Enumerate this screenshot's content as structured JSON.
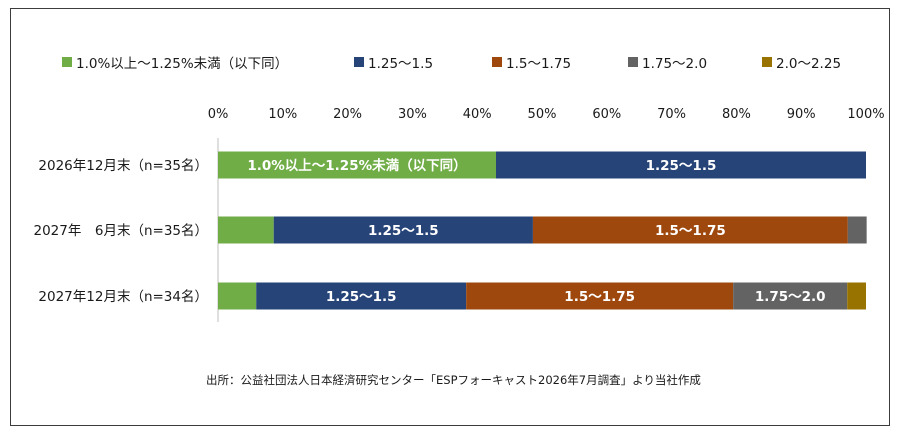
{
  "chart_data": {
    "type": "bar",
    "orientation": "horizontal",
    "stacked": "percent",
    "categories": [
      "2026年12月末（n=35名）",
      "2027年　6月末（n=35名）",
      "2027年12月末（n=34名）"
    ],
    "series": [
      {
        "name": "1.0%以上～1.25%未満（以下同）",
        "color": "#70ad47",
        "values": [
          42.9,
          8.6,
          5.9
        ],
        "bar_labels": [
          "1.0%以上～1.25%未満（以下同）",
          "",
          ""
        ]
      },
      {
        "name": "1.25～1.5",
        "color": "#264478",
        "values": [
          57.1,
          40.0,
          32.4
        ],
        "bar_labels": [
          "1.25～1.5",
          "1.25～1.5",
          "1.25～1.5"
        ]
      },
      {
        "name": "1.5～1.75",
        "color": "#9e480e",
        "values": [
          0,
          48.6,
          41.2
        ],
        "bar_labels": [
          "",
          "1.5～1.75",
          "1.5～1.75"
        ]
      },
      {
        "name": "1.75～2.0",
        "color": "#636363",
        "values": [
          0,
          2.9,
          17.6
        ],
        "bar_labels": [
          "",
          "",
          "1.75～2.0"
        ]
      },
      {
        "name": "2.0～2.25",
        "color": "#997300",
        "values": [
          0,
          0,
          2.9
        ],
        "bar_labels": [
          "",
          "",
          ""
        ]
      }
    ],
    "x_ticks": [
      "0%",
      "10%",
      "20%",
      "30%",
      "40%",
      "50%",
      "60%",
      "70%",
      "80%",
      "90%",
      "100%"
    ],
    "xlim": [
      0,
      100
    ],
    "grid": false,
    "legend": "top",
    "note": "出所：公益社団法人日本経済研究センター「ESPフォーキャスト2026年7月調査」より当社作成"
  }
}
